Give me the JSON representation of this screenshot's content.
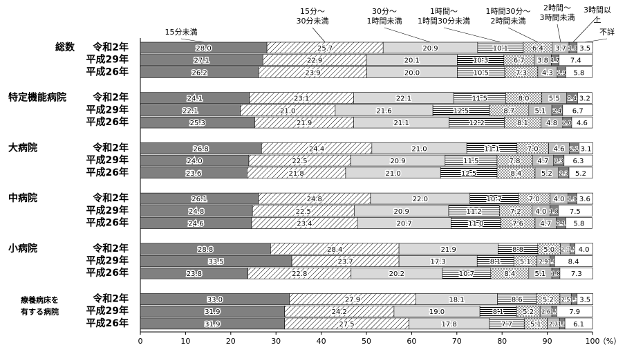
{
  "chart_data": {
    "type": "stacked-bar",
    "orientation": "horizontal",
    "groups": [
      "総数",
      "特定機能病院",
      "大病院",
      "中病院",
      "小病院",
      [
        "療養病床を",
        "有する病院"
      ]
    ],
    "categories": [
      "令和2年",
      "平成29年",
      "平成26年",
      "令和2年",
      "平成29年",
      "平成26年",
      "令和2年",
      "平成29年",
      "平成26年",
      "令和2年",
      "平成29年",
      "平成26年",
      "令和2年",
      "平成29年",
      "平成26年",
      "令和2年",
      "平成29年",
      "平成26年"
    ],
    "series": [
      {
        "name": "15分未満",
        "color": "#808080",
        "values": [
          28.0,
          27.1,
          26.2,
          24.1,
          22.1,
          25.3,
          26.8,
          24.0,
          23.6,
          26.1,
          24.8,
          24.6,
          28.8,
          33.5,
          23.8,
          33.0,
          31.9,
          31.9
        ],
        "value_labels": [
          "28.0",
          "27.1",
          "26.2",
          "24.1",
          "22.1",
          "25.3",
          "26.8",
          "24.0",
          "23.6",
          "26.1",
          "24.8",
          "24.6",
          "28.8",
          "33.5",
          "23.8",
          "33.0",
          "31.9",
          "31.9"
        ]
      },
      {
        "name": "15分～\n30分未満",
        "color": "#ffffff",
        "pattern": "diagonal",
        "values": [
          25.7,
          22.9,
          23.9,
          23.1,
          21.0,
          21.9,
          24.4,
          22.5,
          21.8,
          24.8,
          22.5,
          23.4,
          28.4,
          23.7,
          22.8,
          27.9,
          24.2,
          27.5
        ],
        "value_labels": [
          "25.7",
          "22.9",
          "23.9",
          "23.1",
          "21.0",
          "21.9",
          "24.4",
          "22.5",
          "21.8",
          "24.8",
          "22.5",
          "23.4",
          "28.4",
          "23.7",
          "22.8",
          "27.9",
          "24.2",
          "27.5"
        ]
      },
      {
        "name": "30分～\n1時間未満",
        "color": "#d9d9d9",
        "values": [
          20.9,
          20.1,
          20.0,
          22.1,
          21.6,
          21.1,
          21.0,
          20.9,
          21.0,
          22.0,
          20.9,
          20.7,
          21.9,
          17.3,
          20.2,
          18.1,
          19.0,
          17.8
        ],
        "value_labels": [
          "20.9",
          "20.1",
          "20.0",
          "22.1",
          "21.6",
          "21.1",
          "21.0",
          "20.9",
          "21.0",
          "22.0",
          "20.9",
          "20.7",
          "21.9",
          "17.3",
          "20.2",
          "18.1",
          "19.0",
          "17.8"
        ]
      },
      {
        "name": "1時間～\n1時間30分未満",
        "color": "#ffffff",
        "pattern": "horizontal",
        "values": [
          10.1,
          10.3,
          10.5,
          11.5,
          12.5,
          12.2,
          11.1,
          11.5,
          12.5,
          10.7,
          11.2,
          11.0,
          8.8,
          8.1,
          10.7,
          8.6,
          8.1,
          7.7
        ],
        "value_labels": [
          "10.1",
          "10.3",
          "10.5",
          "11.5",
          "12.5",
          "12.2",
          "11.1",
          "11.5",
          "12.5",
          "10.7",
          "11.2",
          "11.0",
          "8.8",
          "8.1",
          "10.7",
          "8.6",
          "8.1",
          "7.7"
        ]
      },
      {
        "name": "1時間30分～\n2時間未満",
        "color": "#ffffff",
        "pattern": "dots",
        "values": [
          6.4,
          6.7,
          7.3,
          8.0,
          8.7,
          8.1,
          7.0,
          7.8,
          8.4,
          7.0,
          7.2,
          7.6,
          5.0,
          5.1,
          8.4,
          5.2,
          5.2,
          5.1
        ],
        "value_labels": [
          "6.4",
          "6.7",
          "7.3",
          "8.0",
          "8.7",
          "8.1",
          "7.0",
          "7.8",
          "8.4",
          "7.0",
          "7.2",
          "7.6",
          "5.0",
          "5.1",
          "8.4",
          "5.2",
          "5.2",
          "5.1"
        ]
      },
      {
        "name": "2時間～\n3時間未満",
        "color": "#bfbfbf",
        "values": [
          3.7,
          3.8,
          4.3,
          5.5,
          5.1,
          4.8,
          4.6,
          4.7,
          5.2,
          4.0,
          4.0,
          4.7,
          2.1,
          2.9,
          5.1,
          2.5,
          2.6,
          2.7
        ],
        "value_labels": [
          "3.7",
          "3.8",
          "4.3",
          "5.5",
          "5.1",
          "4.8",
          "4.6",
          "4.7",
          "5.2",
          "4.0",
          "4.0",
          "4.7",
          "2.1",
          "2.9",
          "5.1",
          "2.5",
          "2.6",
          "2.7"
        ]
      },
      {
        "name": "3時間以上",
        "color": "#7f7f7f",
        "values": [
          1.8,
          1.7,
          1.9,
          2.4,
          2.4,
          2.0,
          2.1,
          2.3,
          2.3,
          1.9,
          1.8,
          2.1,
          1.1,
          1.0,
          1.8,
          1.3,
          1.1,
          1.2
        ],
        "value_labels": [
          "1.8",
          "1.7",
          "1.9",
          "2.4",
          "2.4",
          "2.0",
          "2.1",
          "2.3",
          "2.3",
          "1.9",
          "1.8",
          "2.1",
          "1.1",
          "1.0",
          "1.8",
          "1.3",
          "1.1",
          "1.2"
        ]
      },
      {
        "name": "不詳",
        "color": "#ffffff",
        "values": [
          3.5,
          7.4,
          5.8,
          3.2,
          6.7,
          4.6,
          3.1,
          6.3,
          5.2,
          3.6,
          7.5,
          5.8,
          4.0,
          8.4,
          7.3,
          3.5,
          7.9,
          6.1
        ],
        "value_labels": [
          "3.5",
          "7.4",
          "5.8",
          "3.2",
          "6.7",
          "4.6",
          "3.1",
          "6.3",
          "5.2",
          "3.6",
          "7.5",
          "5.8",
          "4.0",
          "8.4",
          "7.3",
          "3.5",
          "7.9",
          "6.1"
        ]
      }
    ],
    "xlim": [
      0,
      100
    ],
    "xticks": [
      0,
      10,
      20,
      30,
      40,
      50,
      60,
      70,
      80,
      90,
      100
    ],
    "x_label": "（%）"
  }
}
